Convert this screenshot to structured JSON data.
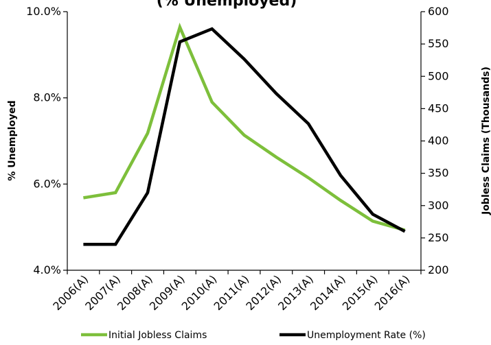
{
  "chart_data": {
    "type": "line",
    "title": "(% Unemployed)",
    "categories": [
      "2006(A)",
      "2007(A)",
      "2008(A)",
      "2009(A)",
      "2010(A)",
      "2011(A)",
      "2012(A)",
      "2013(A)",
      "2014(A)",
      "2015(A)",
      "2016(A)"
    ],
    "y_left": {
      "label": "% Unemployed",
      "range": [
        4.0,
        10.0
      ],
      "ticks": [
        "4.0%",
        "6.0%",
        "8.0%",
        "10.0%"
      ],
      "tick_values": [
        4,
        6,
        8,
        10
      ]
    },
    "y_right": {
      "label": "Jobless Claims (Thousands)",
      "range": [
        200,
        600
      ],
      "ticks": [
        "200",
        "250",
        "300",
        "350",
        "400",
        "450",
        "500",
        "550",
        "600"
      ],
      "tick_values": [
        200,
        250,
        300,
        350,
        400,
        450,
        500,
        550,
        600
      ]
    },
    "series": [
      {
        "name": "Initial Jobless Claims",
        "axis": "right",
        "color": "#7dbf3b",
        "values": [
          312,
          320,
          412,
          576,
          460,
          409,
          375,
          343,
          308,
          276,
          262
        ]
      },
      {
        "name": "Unemployment Rate (%)",
        "axis": "left",
        "color": "#000000",
        "values": [
          4.6,
          4.6,
          5.8,
          9.3,
          9.6,
          8.9,
          8.1,
          7.4,
          6.2,
          5.3,
          4.9
        ]
      }
    ],
    "legend": "bottom",
    "grid": false
  }
}
